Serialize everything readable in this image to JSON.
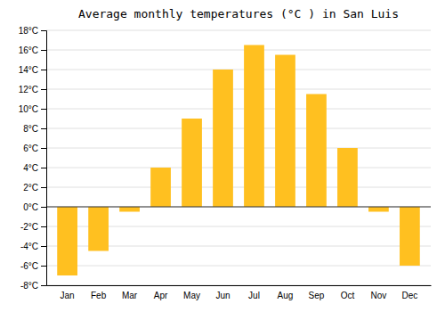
{
  "chart_data": {
    "type": "bar",
    "title": "Average monthly temperatures (°C ) in San Luis",
    "categories": [
      "Jan",
      "Feb",
      "Mar",
      "Apr",
      "May",
      "Jun",
      "Jul",
      "Aug",
      "Sep",
      "Oct",
      "Nov",
      "Dec"
    ],
    "values": [
      -7.0,
      -4.5,
      -0.5,
      4.0,
      9.0,
      14.0,
      16.5,
      15.5,
      11.5,
      6.0,
      -0.5,
      -6.0
    ],
    "color": "#FFC020",
    "ylim": [
      -8,
      18
    ],
    "yticks": [
      {
        "value": -8,
        "label": "-8°C"
      },
      {
        "value": -6,
        "label": "-6°C"
      },
      {
        "value": -4,
        "label": "-4°C"
      },
      {
        "value": -2,
        "label": "-2°C"
      },
      {
        "value": 0,
        "label": "0°C"
      },
      {
        "value": 2,
        "label": "2°C"
      },
      {
        "value": 4,
        "label": "4°C"
      },
      {
        "value": 6,
        "label": "6°C"
      },
      {
        "value": 8,
        "label": "8°C"
      },
      {
        "value": 10,
        "label": "10°C"
      },
      {
        "value": 12,
        "label": "12°C"
      },
      {
        "value": 14,
        "label": "14°C"
      },
      {
        "value": 16,
        "label": "16°C"
      },
      {
        "value": 18,
        "label": "18°C"
      }
    ],
    "grid": true
  }
}
